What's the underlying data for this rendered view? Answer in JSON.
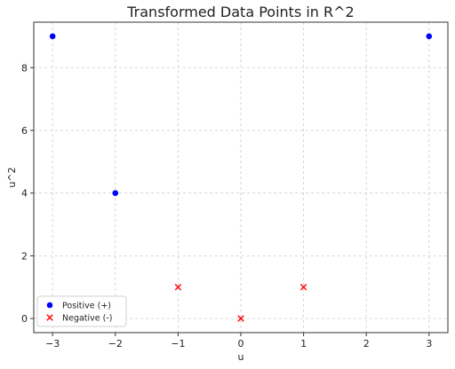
{
  "chart_data": {
    "type": "scatter",
    "title": "Transformed Data Points in R^2",
    "xlabel": "u",
    "ylabel": "u^2",
    "xlim": [
      -3.3,
      3.3
    ],
    "ylim": [
      -0.45,
      9.45
    ],
    "xticks": [
      -3,
      -2,
      -1,
      0,
      1,
      2,
      3
    ],
    "yticks": [
      0,
      2,
      4,
      6,
      8
    ],
    "grid": true,
    "legend_position": "lower-left",
    "series": [
      {
        "name": "Positive (+)",
        "marker": "circle",
        "color": "#0000ff",
        "points": [
          [
            -3,
            9
          ],
          [
            -2,
            4
          ],
          [
            3,
            9
          ]
        ]
      },
      {
        "name": "Negative (-)",
        "marker": "x",
        "color": "#ff0000",
        "points": [
          [
            -1,
            1
          ],
          [
            0,
            0
          ],
          [
            1,
            1
          ]
        ]
      }
    ]
  }
}
